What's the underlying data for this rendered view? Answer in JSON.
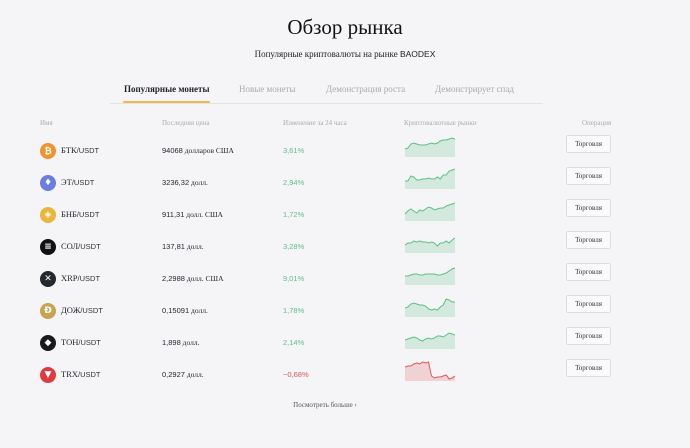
{
  "header": {
    "title": "Обзор рынка",
    "subtitle_text": "Популярные криптовалюты на рынке",
    "subtitle_brand": "BAODEX"
  },
  "tabs": [
    {
      "label": "Популярные монеты",
      "active": true
    },
    {
      "label": "Новые монеты",
      "active": false
    },
    {
      "label": "Демонстрация роста",
      "active": false
    },
    {
      "label": "Демонстрирует спад",
      "active": false
    }
  ],
  "table": {
    "columns": [
      "Имя",
      "Последняя цена",
      "Изменение за 24 часа",
      "Криптовалютные рынки",
      "Операция"
    ],
    "rows": [
      {
        "icon": "bitcoin-icon",
        "color": "#f0922e",
        "glyph": "₿",
        "name": "БТК",
        "pair": "/USDT",
        "price_num": "94068",
        "price_unit": " долларов США",
        "change": "3,61%",
        "positive": true,
        "spark": [
          14,
          13,
          9,
          8,
          9,
          10,
          10,
          10,
          9,
          8,
          9,
          8,
          6,
          5,
          5,
          4,
          3,
          4
        ]
      },
      {
        "icon": "ethereum-icon",
        "color": "#6a7de0",
        "glyph": "♦",
        "name": "ЭТ",
        "pair": "/USDT",
        "price_num": "3236,32",
        "price_unit": " долл.",
        "change": "2,94%",
        "positive": true,
        "spark": [
          14,
          14,
          9,
          10,
          13,
          13,
          12,
          12,
          11,
          12,
          12,
          10,
          12,
          8,
          8,
          4,
          3,
          2
        ]
      },
      {
        "icon": "bnb-icon",
        "color": "#e8b73a",
        "glyph": "◈",
        "name": "БНБ",
        "pair": "/USDT",
        "price_num": "911,31",
        "price_unit": " долл. США",
        "change": "1,72%",
        "positive": true,
        "spark": [
          15,
          12,
          10,
          12,
          14,
          11,
          12,
          10,
          8,
          9,
          11,
          10,
          9,
          9,
          7,
          6,
          5,
          4
        ]
      },
      {
        "icon": "solana-icon",
        "color": "#111111",
        "glyph": "≡",
        "name": "СОЛ",
        "pair": "/USDT",
        "price_num": "137,81",
        "price_unit": " долл.",
        "change": "3,28%",
        "positive": true,
        "spark": [
          14,
          12,
          12,
          10,
          11,
          10,
          11,
          11,
          12,
          11,
          12,
          15,
          12,
          12,
          10,
          12,
          9,
          7
        ]
      },
      {
        "icon": "xrp-icon",
        "color": "#23292f",
        "glyph": "✕",
        "name": "XRP",
        "pair": "/USDT",
        "price_num": "2,2988",
        "price_unit": " долл. США",
        "change": "9,01%",
        "positive": true,
        "spark": [
          13,
          13,
          12,
          11,
          11,
          12,
          12,
          11,
          11,
          11,
          11,
          12,
          12,
          11,
          10,
          8,
          6,
          5
        ]
      },
      {
        "icon": "dogecoin-icon",
        "color": "#c7a450",
        "glyph": "Ð",
        "name": "ДОЖ",
        "pair": "/USDT",
        "price_num": "0,15091",
        "price_unit": " долл.",
        "change": "1,78%",
        "positive": true,
        "spark": [
          13,
          12,
          9,
          8,
          9,
          10,
          10,
          11,
          14,
          15,
          14,
          15,
          12,
          10,
          4,
          5,
          7,
          7
        ]
      },
      {
        "icon": "toncoin-icon",
        "color": "#1a1a1a",
        "glyph": "◆",
        "name": "ТОН",
        "pair": "/USDT",
        "price_num": "1,898",
        "price_unit": " долл.",
        "change": "2,14%",
        "positive": true,
        "spark": [
          13,
          12,
          11,
          10,
          11,
          13,
          14,
          12,
          11,
          12,
          11,
          9,
          9,
          10,
          8,
          6,
          7,
          8
        ]
      },
      {
        "icon": "tron-icon",
        "color": "#e0393e",
        "glyph": "▼",
        "name": "TRX",
        "pair": "/USDT",
        "price_num": "0,2927",
        "price_unit": " долл.",
        "change": "−0,68%",
        "positive": false,
        "spark": [
          8,
          7,
          7,
          5,
          4,
          5,
          3,
          4,
          3,
          17,
          19,
          18,
          18,
          17,
          16,
          20,
          19,
          17
        ]
      }
    ],
    "trade_label": "Торговля"
  },
  "footer": {
    "more_label": "Посмотреть больше ›"
  },
  "colors": {
    "positive": "#5cbf85",
    "negative": "#e0555a",
    "accent": "#f0b94a",
    "background": "#f5f5f7"
  }
}
